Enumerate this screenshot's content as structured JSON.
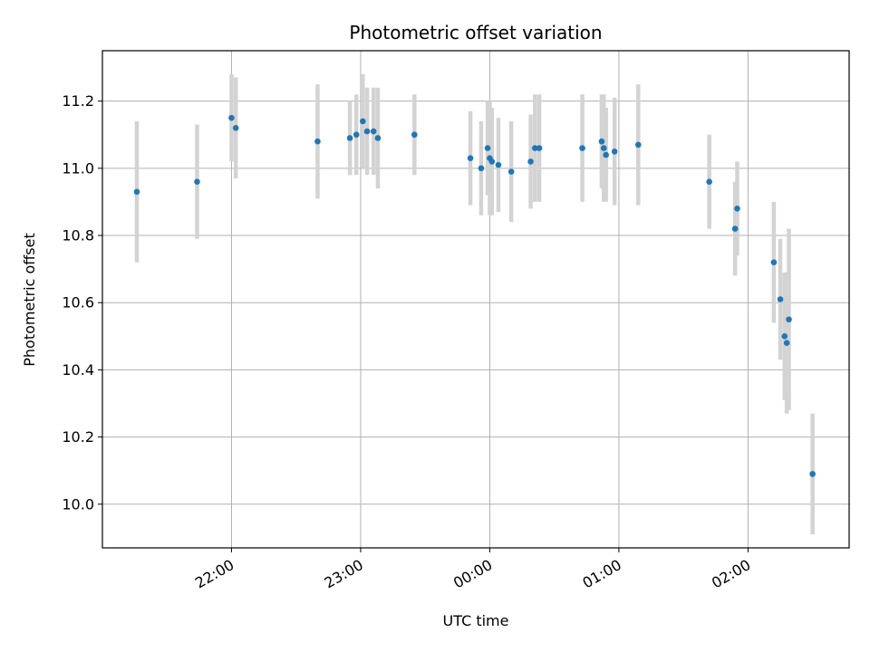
{
  "colors": {
    "point": "#1f77b4",
    "errorbar": "#d3d3d3",
    "grid": "#b0b0b0"
  },
  "chart_data": {
    "type": "scatter",
    "title": "Photometric offset variation",
    "xlabel": "UTC time",
    "ylabel": "Photometric offset",
    "x_is_time": true,
    "xlim": [
      "21:00",
      "02:47"
    ],
    "ylim": [
      9.87,
      11.35
    ],
    "grid": true,
    "legend": "none",
    "xticks": [
      "22:00",
      "23:00",
      "00:00",
      "01:00",
      "02:00"
    ],
    "yticks": [
      10.0,
      10.2,
      10.4,
      10.6,
      10.8,
      11.0,
      11.2
    ],
    "ytick_labels": [
      "10.0",
      "10.2",
      "10.4",
      "10.6",
      "10.8",
      "11.0",
      "11.2"
    ],
    "points": [
      {
        "x": "21:16",
        "y": 10.93,
        "err": 0.21
      },
      {
        "x": "21:44",
        "y": 10.96,
        "err": 0.17
      },
      {
        "x": "22:00",
        "y": 11.15,
        "err": 0.13
      },
      {
        "x": "22:02",
        "y": 11.12,
        "err": 0.15
      },
      {
        "x": "22:40",
        "y": 11.08,
        "err": 0.17
      },
      {
        "x": "22:55",
        "y": 11.09,
        "err": 0.11
      },
      {
        "x": "22:58",
        "y": 11.1,
        "err": 0.12
      },
      {
        "x": "23:01",
        "y": 11.14,
        "err": 0.14
      },
      {
        "x": "23:03",
        "y": 11.11,
        "err": 0.13
      },
      {
        "x": "23:06",
        "y": 11.11,
        "err": 0.13
      },
      {
        "x": "23:08",
        "y": 11.09,
        "err": 0.15
      },
      {
        "x": "23:25",
        "y": 11.1,
        "err": 0.12
      },
      {
        "x": "23:51",
        "y": 11.03,
        "err": 0.14
      },
      {
        "x": "23:56",
        "y": 11.0,
        "err": 0.14
      },
      {
        "x": "23:59",
        "y": 11.06,
        "err": 0.14
      },
      {
        "x": "00:00",
        "y": 11.03,
        "err": 0.17
      },
      {
        "x": "00:01",
        "y": 11.02,
        "err": 0.16
      },
      {
        "x": "00:04",
        "y": 11.01,
        "err": 0.14
      },
      {
        "x": "00:10",
        "y": 10.99,
        "err": 0.15
      },
      {
        "x": "00:19",
        "y": 11.02,
        "err": 0.14
      },
      {
        "x": "00:21",
        "y": 11.06,
        "err": 0.16
      },
      {
        "x": "00:23",
        "y": 11.06,
        "err": 0.16
      },
      {
        "x": "00:43",
        "y": 11.06,
        "err": 0.16
      },
      {
        "x": "00:52",
        "y": 11.08,
        "err": 0.14
      },
      {
        "x": "00:53",
        "y": 11.06,
        "err": 0.16
      },
      {
        "x": "00:54",
        "y": 11.04,
        "err": 0.14
      },
      {
        "x": "00:58",
        "y": 11.05,
        "err": 0.16
      },
      {
        "x": "01:09",
        "y": 11.07,
        "err": 0.18
      },
      {
        "x": "01:42",
        "y": 10.96,
        "err": 0.14
      },
      {
        "x": "01:54",
        "y": 10.82,
        "err": 0.14
      },
      {
        "x": "01:55",
        "y": 10.88,
        "err": 0.14
      },
      {
        "x": "02:12",
        "y": 10.72,
        "err": 0.18
      },
      {
        "x": "02:15",
        "y": 10.61,
        "err": 0.18
      },
      {
        "x": "02:17",
        "y": 10.5,
        "err": 0.19
      },
      {
        "x": "02:18",
        "y": 10.48,
        "err": 0.21
      },
      {
        "x": "02:19",
        "y": 10.55,
        "err": 0.27
      },
      {
        "x": "02:30",
        "y": 10.09,
        "err": 0.18
      }
    ]
  }
}
